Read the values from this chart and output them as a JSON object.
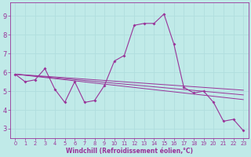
{
  "xlabel": "Windchill (Refroidissement éolien,°C)",
  "bg_color": "#c0eae8",
  "line_color": "#993399",
  "grid_color": "#b0dede",
  "xlim": [
    -0.5,
    23.5
  ],
  "ylim": [
    2.5,
    9.7
  ],
  "xticks": [
    0,
    1,
    2,
    3,
    4,
    5,
    6,
    7,
    8,
    9,
    10,
    11,
    12,
    13,
    14,
    15,
    16,
    17,
    18,
    19,
    20,
    21,
    22,
    23
  ],
  "yticks": [
    3,
    4,
    5,
    6,
    7,
    8,
    9
  ],
  "main": [
    5.9,
    5.5,
    5.6,
    6.2,
    5.1,
    4.4,
    5.5,
    4.4,
    4.5,
    5.3,
    6.6,
    6.9,
    8.5,
    8.6,
    8.6,
    9.1,
    7.5,
    5.2,
    4.9,
    5.0,
    4.4,
    3.4,
    3.5,
    2.9
  ],
  "trend_lines": [
    {
      "x0": 0,
      "y0": 5.9,
      "x1": 23,
      "y1": 4.8
    },
    {
      "x0": 0,
      "y0": 5.9,
      "x1": 23,
      "y1": 4.55
    },
    {
      "x0": 0,
      "y0": 5.9,
      "x1": 23,
      "y1": 5.05
    }
  ]
}
